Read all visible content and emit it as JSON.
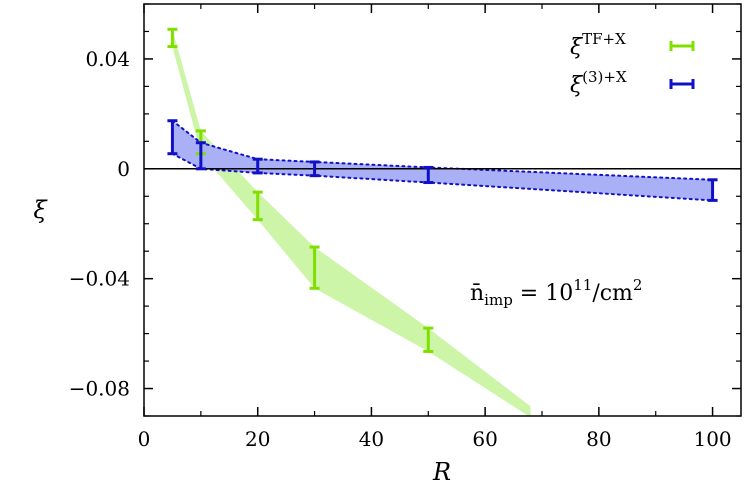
{
  "chart_data": {
    "type": "line",
    "xlabel": "R",
    "ylabel": "ξ",
    "xlim": [
      0,
      105
    ],
    "ylim": [
      -0.09,
      0.06
    ],
    "x_ticks": [
      0,
      20,
      40,
      60,
      80,
      100
    ],
    "x_tick_labels": [
      "0",
      "20",
      "40",
      "60",
      "80",
      "100"
    ],
    "y_ticks": [
      0.04,
      0,
      -0.04,
      -0.08
    ],
    "y_tick_labels": [
      "0.04",
      "0",
      "−0.04",
      "−0.08"
    ],
    "zero_line": true,
    "grid": false,
    "legend_position": "top-right",
    "annotation": {
      "base": "n̄",
      "sub": "imp",
      "mid": " = 10",
      "sup": "11",
      "tail": "/cm",
      "sup2": "2"
    },
    "series": [
      {
        "name": "ξ^{TF+X}",
        "legend": {
          "base": "ξ",
          "sup": "TF+X"
        },
        "color": "#7fe000",
        "band_color": "#ccf5a8",
        "band_style": "solid",
        "points": [
          {
            "x": 5,
            "y_low": 0.0445,
            "y_high": 0.0508
          },
          {
            "x": 10,
            "y_low": 0.0055,
            "y_high": 0.0138
          },
          {
            "x": 20,
            "y_low": -0.0185,
            "y_high": -0.0085
          },
          {
            "x": 30,
            "y_low": -0.0435,
            "y_high": -0.0285
          },
          {
            "x": 50,
            "y_low": -0.0665,
            "y_high": -0.058
          }
        ],
        "band_extension": {
          "x": 68,
          "y_low": -0.0905,
          "y_high": -0.0865
        }
      },
      {
        "name": "ξ^{(3)+X}",
        "legend": {
          "base": "ξ",
          "sup": "(3)+X"
        },
        "color": "#1010c8",
        "band_color": "#aab0f5",
        "band_style": "dotted",
        "points": [
          {
            "x": 5,
            "y_low": 0.0055,
            "y_high": 0.0175
          },
          {
            "x": 10,
            "y_low": 0.0,
            "y_high": 0.0095
          },
          {
            "x": 20,
            "y_low": -0.0015,
            "y_high": 0.0035
          },
          {
            "x": 30,
            "y_low": -0.0025,
            "y_high": 0.0025
          },
          {
            "x": 50,
            "y_low": -0.005,
            "y_high": 0.0005
          },
          {
            "x": 100,
            "y_low": -0.0115,
            "y_high": -0.004
          }
        ]
      }
    ]
  }
}
